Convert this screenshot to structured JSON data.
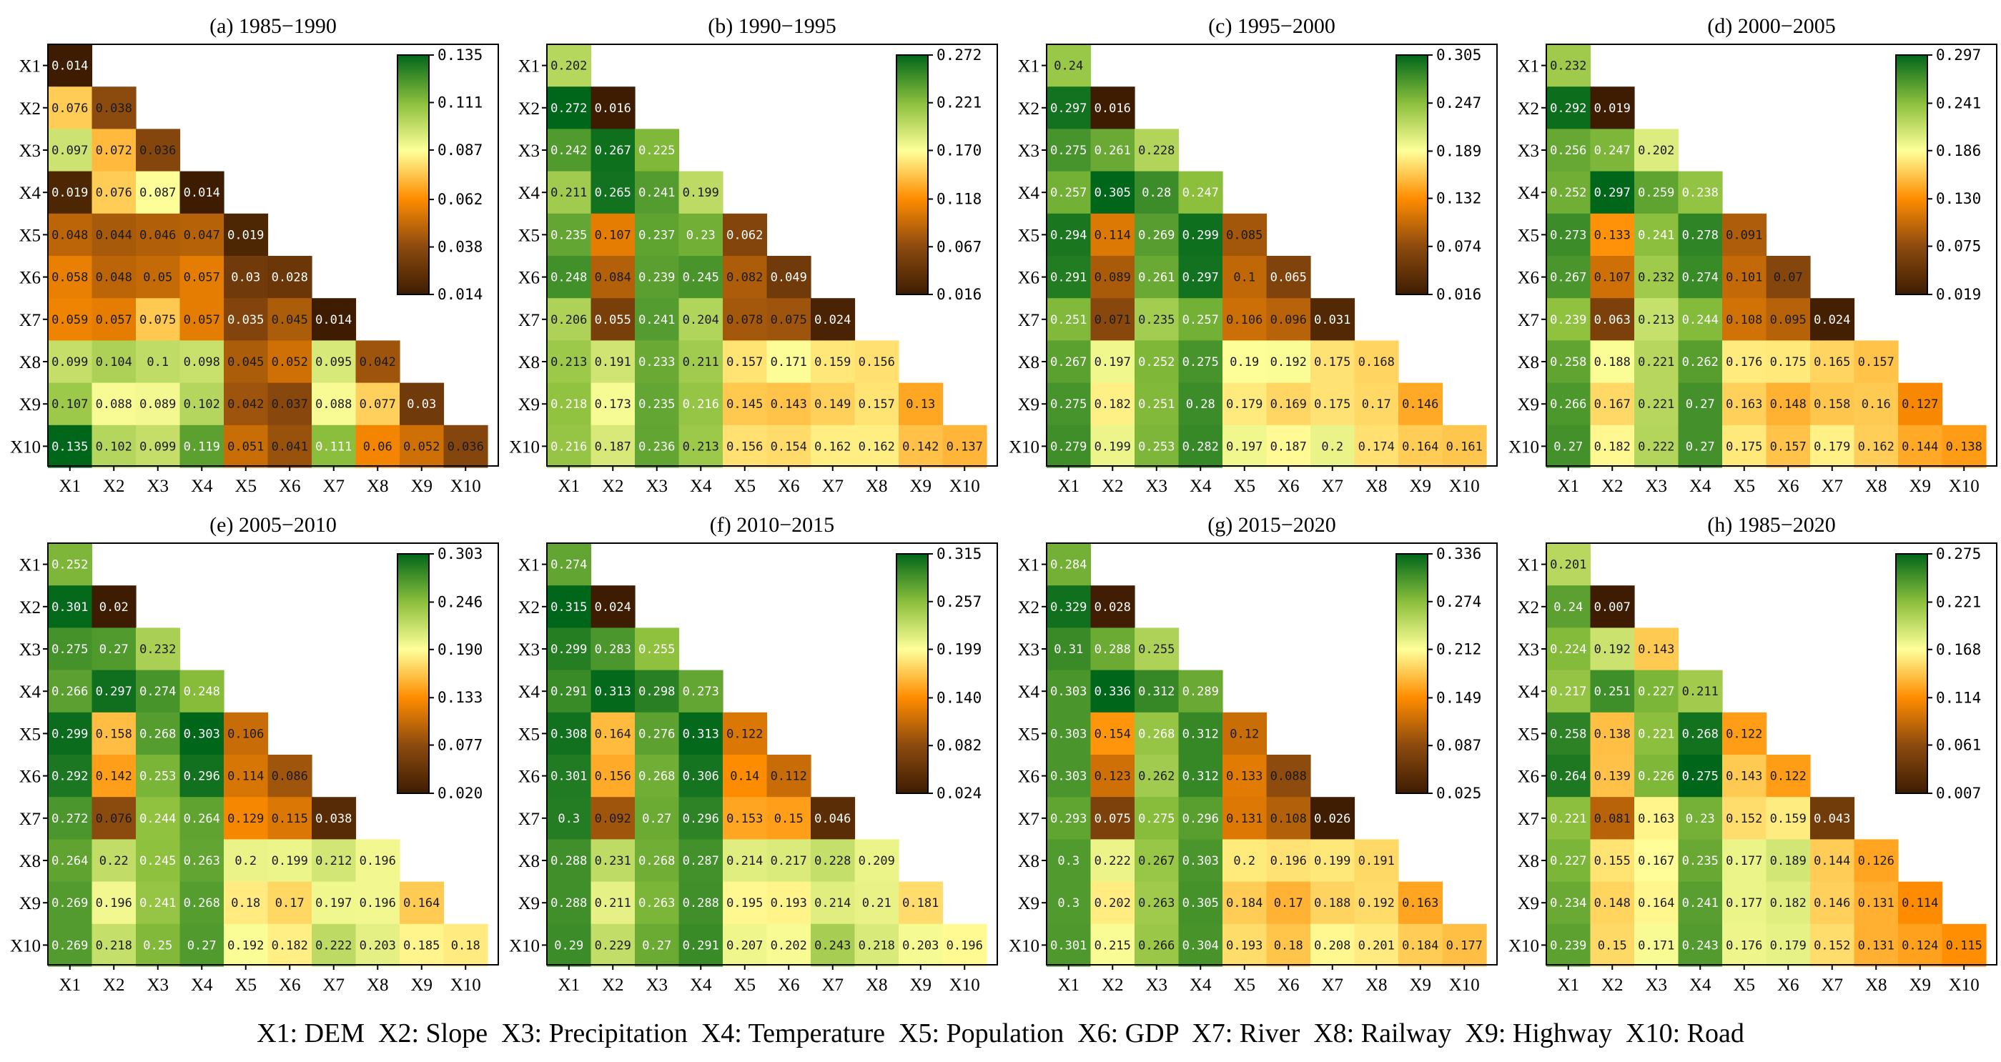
{
  "chart_data": [
    {
      "type": "heatmap",
      "title": "(a) 1985−1990",
      "variables": [
        "X1",
        "X2",
        "X3",
        "X4",
        "X5",
        "X6",
        "X7",
        "X8",
        "X9",
        "X10"
      ],
      "lower_triangle": [
        [
          0.014
        ],
        [
          0.076,
          0.038
        ],
        [
          0.097,
          0.072,
          0.036
        ],
        [
          0.019,
          0.076,
          0.087,
          0.014
        ],
        [
          0.048,
          0.044,
          0.046,
          0.047,
          0.019
        ],
        [
          0.058,
          0.048,
          0.05,
          0.057,
          0.03,
          0.028
        ],
        [
          0.059,
          0.057,
          0.075,
          0.057,
          0.035,
          0.045,
          0.014
        ],
        [
          0.099,
          0.104,
          0.1,
          0.098,
          0.045,
          0.052,
          0.095,
          0.042
        ],
        [
          0.107,
          0.088,
          0.089,
          0.102,
          0.042,
          0.037,
          0.088,
          0.077,
          0.03
        ],
        [
          0.135,
          0.102,
          0.099,
          0.119,
          0.051,
          0.041,
          0.111,
          0.06,
          0.052,
          0.036
        ]
      ],
      "colorbar_ticks": [
        0.014,
        0.038,
        0.062,
        0.087,
        0.111,
        0.135
      ],
      "colorbar_labels": [
        "0.014",
        "0.038",
        "0.062",
        "0.087",
        "0.111",
        "0.135"
      ]
    },
    {
      "type": "heatmap",
      "title": "(b) 1990−1995",
      "variables": [
        "X1",
        "X2",
        "X3",
        "X4",
        "X5",
        "X6",
        "X7",
        "X8",
        "X9",
        "X10"
      ],
      "lower_triangle": [
        [
          0.202
        ],
        [
          0.272,
          0.016
        ],
        [
          0.242,
          0.267,
          0.225
        ],
        [
          0.211,
          0.265,
          0.241,
          0.199
        ],
        [
          0.235,
          0.107,
          0.237,
          0.23,
          0.062
        ],
        [
          0.248,
          0.084,
          0.239,
          0.245,
          0.082,
          0.049
        ],
        [
          0.206,
          0.055,
          0.241,
          0.204,
          0.078,
          0.075,
          0.024
        ],
        [
          0.213,
          0.191,
          0.233,
          0.211,
          0.157,
          0.171,
          0.159,
          0.156
        ],
        [
          0.218,
          0.173,
          0.235,
          0.216,
          0.145,
          0.143,
          0.149,
          0.157,
          0.13
        ],
        [
          0.216,
          0.187,
          0.236,
          0.213,
          0.156,
          0.154,
          0.162,
          0.162,
          0.142,
          0.137
        ]
      ],
      "colorbar_ticks": [
        0.016,
        0.067,
        0.118,
        0.17,
        0.221,
        0.272
      ],
      "colorbar_labels": [
        "0.016",
        "0.067",
        "0.118",
        "0.170",
        "0.221",
        "0.272"
      ]
    },
    {
      "type": "heatmap",
      "title": "(c) 1995−2000",
      "variables": [
        "X1",
        "X2",
        "X3",
        "X4",
        "X5",
        "X6",
        "X7",
        "X8",
        "X9",
        "X10"
      ],
      "lower_triangle": [
        [
          0.24
        ],
        [
          0.297,
          0.016
        ],
        [
          0.275,
          0.261,
          0.228
        ],
        [
          0.257,
          0.305,
          0.28,
          0.247
        ],
        [
          0.294,
          0.114,
          0.269,
          0.299,
          0.085
        ],
        [
          0.291,
          0.089,
          0.261,
          0.297,
          0.1,
          0.065
        ],
        [
          0.251,
          0.071,
          0.235,
          0.257,
          0.106,
          0.096,
          0.031
        ],
        [
          0.267,
          0.197,
          0.252,
          0.275,
          0.19,
          0.192,
          0.175,
          0.168
        ],
        [
          0.275,
          0.182,
          0.251,
          0.28,
          0.179,
          0.169,
          0.175,
          0.17,
          0.146
        ],
        [
          0.279,
          0.199,
          0.253,
          0.282,
          0.197,
          0.187,
          0.2,
          0.174,
          0.164,
          0.161
        ]
      ],
      "colorbar_ticks": [
        0.016,
        0.074,
        0.132,
        0.189,
        0.247,
        0.305
      ],
      "colorbar_labels": [
        "0.016",
        "0.074",
        "0.132",
        "0.189",
        "0.247",
        "0.305"
      ]
    },
    {
      "type": "heatmap",
      "title": "(d) 2000−2005",
      "variables": [
        "X1",
        "X2",
        "X3",
        "X4",
        "X5",
        "X6",
        "X7",
        "X8",
        "X9",
        "X10"
      ],
      "lower_triangle": [
        [
          0.232
        ],
        [
          0.292,
          0.019
        ],
        [
          0.256,
          0.247,
          0.202
        ],
        [
          0.252,
          0.297,
          0.259,
          0.238
        ],
        [
          0.273,
          0.133,
          0.241,
          0.278,
          0.091
        ],
        [
          0.267,
          0.107,
          0.232,
          0.274,
          0.101,
          0.07
        ],
        [
          0.239,
          0.063,
          0.213,
          0.244,
          0.108,
          0.095,
          0.024
        ],
        [
          0.258,
          0.188,
          0.221,
          0.262,
          0.176,
          0.175,
          0.165,
          0.157
        ],
        [
          0.266,
          0.167,
          0.221,
          0.27,
          0.163,
          0.148,
          0.158,
          0.16,
          0.127
        ],
        [
          0.27,
          0.182,
          0.222,
          0.27,
          0.175,
          0.157,
          0.179,
          0.162,
          0.144,
          0.138
        ]
      ],
      "colorbar_ticks": [
        0.019,
        0.075,
        0.13,
        0.186,
        0.241,
        0.297
      ],
      "colorbar_labels": [
        "0.019",
        "0.075",
        "0.130",
        "0.186",
        "0.241",
        "0.297"
      ]
    },
    {
      "type": "heatmap",
      "title": "(e) 2005−2010",
      "variables": [
        "X1",
        "X2",
        "X3",
        "X4",
        "X5",
        "X6",
        "X7",
        "X8",
        "X9",
        "X10"
      ],
      "lower_triangle": [
        [
          0.252
        ],
        [
          0.301,
          0.02
        ],
        [
          0.275,
          0.27,
          0.232
        ],
        [
          0.266,
          0.297,
          0.274,
          0.248
        ],
        [
          0.299,
          0.158,
          0.268,
          0.303,
          0.106
        ],
        [
          0.292,
          0.142,
          0.253,
          0.296,
          0.114,
          0.086
        ],
        [
          0.272,
          0.076,
          0.244,
          0.264,
          0.129,
          0.115,
          0.038
        ],
        [
          0.264,
          0.22,
          0.245,
          0.263,
          0.2,
          0.199,
          0.212,
          0.196
        ],
        [
          0.269,
          0.196,
          0.241,
          0.268,
          0.18,
          0.17,
          0.197,
          0.196,
          0.164
        ],
        [
          0.269,
          0.218,
          0.25,
          0.27,
          0.192,
          0.182,
          0.222,
          0.203,
          0.185,
          0.18
        ]
      ],
      "colorbar_ticks": [
        0.02,
        0.077,
        0.133,
        0.19,
        0.246,
        0.303
      ],
      "colorbar_labels": [
        "0.020",
        "0.077",
        "0.133",
        "0.190",
        "0.246",
        "0.303"
      ]
    },
    {
      "type": "heatmap",
      "title": "(f) 2010−2015",
      "variables": [
        "X1",
        "X2",
        "X3",
        "X4",
        "X5",
        "X6",
        "X7",
        "X8",
        "X9",
        "X10"
      ],
      "lower_triangle": [
        [
          0.274
        ],
        [
          0.315,
          0.024
        ],
        [
          0.299,
          0.283,
          0.255
        ],
        [
          0.291,
          0.313,
          0.298,
          0.273
        ],
        [
          0.308,
          0.164,
          0.276,
          0.313,
          0.122
        ],
        [
          0.301,
          0.156,
          0.268,
          0.306,
          0.14,
          0.112
        ],
        [
          0.3,
          0.092,
          0.27,
          0.296,
          0.153,
          0.15,
          0.046
        ],
        [
          0.288,
          0.231,
          0.268,
          0.287,
          0.214,
          0.217,
          0.228,
          0.209
        ],
        [
          0.288,
          0.211,
          0.263,
          0.288,
          0.195,
          0.193,
          0.214,
          0.21,
          0.181
        ],
        [
          0.29,
          0.229,
          0.27,
          0.291,
          0.207,
          0.202,
          0.243,
          0.218,
          0.203,
          0.196
        ]
      ],
      "colorbar_ticks": [
        0.024,
        0.082,
        0.14,
        0.199,
        0.257,
        0.315
      ],
      "colorbar_labels": [
        "0.024",
        "0.082",
        "0.140",
        "0.199",
        "0.257",
        "0.315"
      ]
    },
    {
      "type": "heatmap",
      "title": "(g) 2015−2020",
      "variables": [
        "X1",
        "X2",
        "X3",
        "X4",
        "X5",
        "X6",
        "X7",
        "X8",
        "X9",
        "X10"
      ],
      "lower_triangle": [
        [
          0.284
        ],
        [
          0.329,
          0.028
        ],
        [
          0.31,
          0.288,
          0.255
        ],
        [
          0.303,
          0.336,
          0.312,
          0.289
        ],
        [
          0.303,
          0.154,
          0.268,
          0.312,
          0.12
        ],
        [
          0.303,
          0.123,
          0.262,
          0.312,
          0.133,
          0.088
        ],
        [
          0.293,
          0.075,
          0.275,
          0.296,
          0.131,
          0.108,
          0.026
        ],
        [
          0.3,
          0.222,
          0.267,
          0.303,
          0.2,
          0.196,
          0.199,
          0.191
        ],
        [
          0.3,
          0.202,
          0.263,
          0.305,
          0.184,
          0.17,
          0.188,
          0.192,
          0.163
        ],
        [
          0.301,
          0.215,
          0.266,
          0.304,
          0.193,
          0.18,
          0.208,
          0.201,
          0.184,
          0.177
        ]
      ],
      "colorbar_ticks": [
        0.025,
        0.087,
        0.149,
        0.212,
        0.274,
        0.336
      ],
      "colorbar_labels": [
        "0.025",
        "0.087",
        "0.149",
        "0.212",
        "0.274",
        "0.336"
      ]
    },
    {
      "type": "heatmap",
      "title": "(h) 1985−2020",
      "variables": [
        "X1",
        "X2",
        "X3",
        "X4",
        "X5",
        "X6",
        "X7",
        "X8",
        "X9",
        "X10"
      ],
      "lower_triangle": [
        [
          0.201
        ],
        [
          0.24,
          0.007
        ],
        [
          0.224,
          0.192,
          0.143
        ],
        [
          0.217,
          0.251,
          0.227,
          0.211
        ],
        [
          0.258,
          0.138,
          0.221,
          0.268,
          0.122
        ],
        [
          0.264,
          0.139,
          0.226,
          0.275,
          0.143,
          0.122
        ],
        [
          0.221,
          0.081,
          0.163,
          0.23,
          0.152,
          0.159,
          0.043
        ],
        [
          0.227,
          0.155,
          0.167,
          0.235,
          0.177,
          0.189,
          0.144,
          0.126
        ],
        [
          0.234,
          0.148,
          0.164,
          0.241,
          0.177,
          0.182,
          0.146,
          0.131,
          0.114
        ],
        [
          0.239,
          0.15,
          0.171,
          0.243,
          0.176,
          0.179,
          0.152,
          0.131,
          0.124,
          0.115
        ]
      ],
      "colorbar_ticks": [
        0.007,
        0.061,
        0.114,
        0.168,
        0.221,
        0.275
      ],
      "colorbar_labels": [
        "0.007",
        "0.061",
        "0.114",
        "0.168",
        "0.221",
        "0.275"
      ]
    }
  ],
  "colormap": [
    "#3d1c02",
    "#8c4a0e",
    "#ff8c00",
    "#ffff99",
    "#8bbf3c",
    "#00661a"
  ],
  "legend_text": "X1: DEM  X2: Slope  X3: Precipitation  X4: Temperature  X5: Population  X6: GDP  X7: River  X8: Railway  X9: Highway  X10: Road"
}
